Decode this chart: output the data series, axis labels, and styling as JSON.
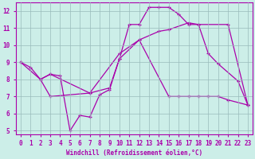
{
  "xlabel": "Windchill (Refroidissement éolien,°C)",
  "xlim": [
    -0.5,
    23.5
  ],
  "ylim": [
    4.8,
    12.5
  ],
  "background_color": "#cceee8",
  "line_color": "#aa00aa",
  "grid_color": "#99bbbb",
  "lines": [
    {
      "x": [
        0,
        1,
        2,
        3,
        4,
        5,
        6,
        7,
        8,
        9,
        10,
        11,
        12,
        13,
        14,
        15,
        16,
        17,
        18,
        19,
        20,
        22,
        23
      ],
      "y": [
        9.0,
        8.7,
        8.0,
        8.3,
        8.2,
        5.0,
        5.9,
        5.8,
        7.1,
        7.4,
        9.2,
        11.2,
        11.2,
        12.2,
        12.2,
        12.2,
        11.8,
        11.2,
        11.2,
        9.5,
        8.9,
        7.9,
        6.5
      ]
    },
    {
      "x": [
        0,
        2,
        3,
        7,
        10,
        12,
        14,
        15,
        17,
        18,
        21,
        23
      ],
      "y": [
        9.0,
        8.0,
        8.3,
        7.2,
        9.5,
        10.3,
        10.8,
        10.9,
        11.3,
        11.2,
        11.2,
        6.5
      ]
    },
    {
      "x": [
        2,
        3,
        7,
        9,
        10,
        12,
        15,
        16,
        17,
        18,
        19,
        20,
        21,
        23
      ],
      "y": [
        8.0,
        7.0,
        7.2,
        7.5,
        9.2,
        10.3,
        7.0,
        7.0,
        7.0,
        7.0,
        7.0,
        7.0,
        6.8,
        6.5
      ]
    }
  ]
}
